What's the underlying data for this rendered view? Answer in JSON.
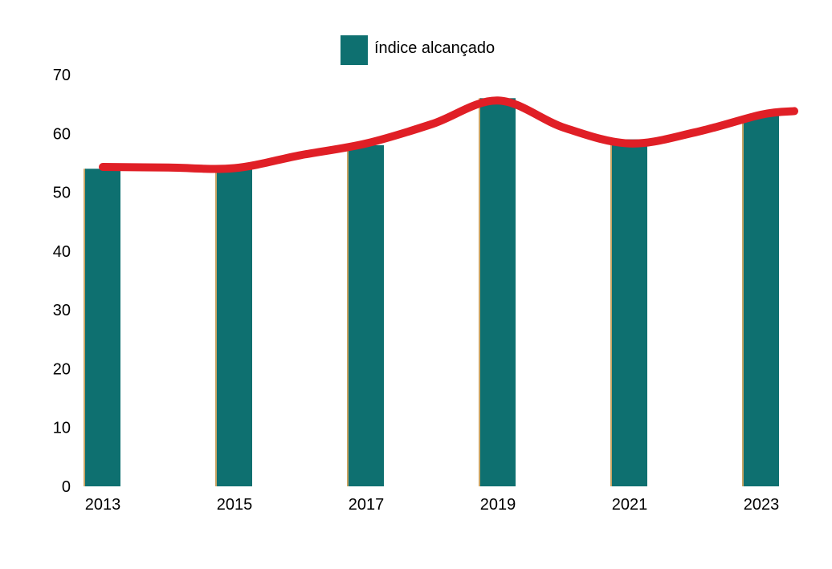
{
  "chart_data": {
    "type": "bar",
    "categories": [
      "2013",
      "2015",
      "2017",
      "2019",
      "2021",
      "2023"
    ],
    "series": [
      {
        "name": "índice alcançado",
        "values": [
          54,
          54,
          58,
          66,
          59,
          63
        ]
      }
    ],
    "trend_line": [
      [
        2013,
        54.3
      ],
      [
        2014,
        54.2
      ],
      [
        2015,
        54.1
      ],
      [
        2016,
        56.3
      ],
      [
        2017,
        58.3
      ],
      [
        2018,
        61.6
      ],
      [
        2019,
        65.6
      ],
      [
        2020,
        61.0
      ],
      [
        2021,
        58.3
      ],
      [
        2022,
        60.2
      ],
      [
        2023,
        63.2
      ],
      [
        2023.5,
        63.8
      ]
    ],
    "y_ticks": [
      0,
      10,
      20,
      30,
      40,
      50,
      60,
      70
    ],
    "ylim": [
      0,
      70
    ],
    "grid": false,
    "legend": "top-center",
    "colors": {
      "bar": "#0e7070",
      "bar_edge": "#c8a464",
      "trend": "#e01f26"
    }
  }
}
